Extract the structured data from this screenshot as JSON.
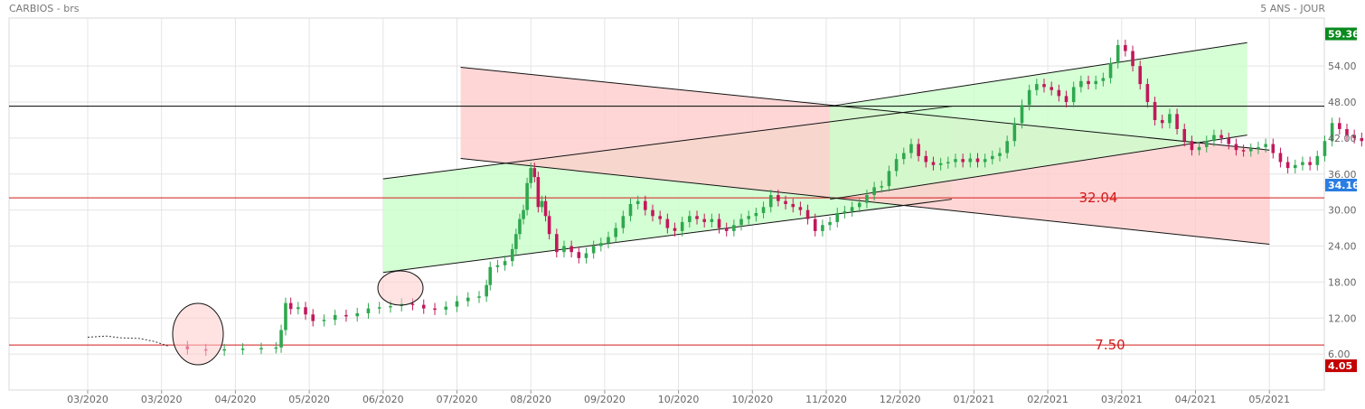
{
  "header": {
    "title": "CARBIOS - brs",
    "period": "5 ANS - JOUR"
  },
  "chart_data": {
    "type": "candlestick",
    "title": "CARBIOS - brs",
    "period": "5 ANS - JOUR",
    "ylim": [
      0,
      62
    ],
    "y_ticks": [
      "6.00",
      "12.00",
      "18.00",
      "24.00",
      "30.00",
      "36.00",
      "42.00",
      "48.00",
      "54.00"
    ],
    "x_ticks": [
      "03/2020",
      "03/2020",
      "04/2020",
      "05/2020",
      "06/2020",
      "07/2020",
      "08/2020",
      "09/2020",
      "10/2020",
      "10/2020",
      "11/2020",
      "12/2020",
      "01/2021",
      "02/2021",
      "03/2021",
      "04/2021",
      "05/2021"
    ],
    "grid": true,
    "badges": [
      {
        "label": "59.36",
        "value": 59.36,
        "color": "#0a8a1e"
      },
      {
        "label": "34.16",
        "value": 34.16,
        "color": "#2a7de1"
      },
      {
        "label": "4.05",
        "value": 4.05,
        "color": "#c40000"
      }
    ],
    "levels": [
      {
        "label": "32.04",
        "value": 32.04,
        "color": "#d21a1a"
      },
      {
        "label": "7.50",
        "value": 7.5,
        "color": "#d21a1a"
      },
      {
        "label": "",
        "value": 47.3,
        "color": "#000000"
      }
    ],
    "channels": [
      {
        "fill": "#ccffcc",
        "opacity": 0.85,
        "x0": 4,
        "x1": 11.7,
        "top": [
          35.2,
          47.3
        ],
        "bottom": [
          19.6,
          31.8
        ]
      },
      {
        "fill": "#ffcccc",
        "opacity": 0.8,
        "x0": 5.05,
        "x1": 16,
        "top": [
          53.8,
          40.0
        ],
        "bottom": [
          38.6,
          24.3
        ]
      },
      {
        "fill": "#ccffcc",
        "opacity": 0.8,
        "x0": 10.05,
        "x1": 15.7,
        "top": [
          47.3,
          57.9
        ],
        "bottom": [
          31.8,
          42.5
        ]
      }
    ],
    "price": [
      [
        0,
        8.8
      ],
      [
        0.25,
        9.0
      ],
      [
        0.45,
        8.7
      ],
      [
        0.7,
        8.6
      ],
      [
        0.9,
        8.1
      ],
      [
        1.1,
        7.3
      ],
      [
        1.35,
        6.8
      ],
      [
        1.6,
        6.6
      ],
      [
        1.85,
        6.8
      ],
      [
        2.1,
        6.9
      ],
      [
        2.35,
        7.0
      ],
      [
        2.55,
        7.1
      ],
      [
        2.62,
        10.0
      ],
      [
        2.68,
        14.5
      ],
      [
        2.75,
        13.5
      ],
      [
        2.85,
        13.8
      ],
      [
        2.95,
        12.6
      ],
      [
        3.05,
        11.5
      ],
      [
        3.2,
        11.7
      ],
      [
        3.35,
        12.5
      ],
      [
        3.5,
        12.3
      ],
      [
        3.65,
        12.8
      ],
      [
        3.8,
        13.6
      ],
      [
        3.95,
        13.8
      ],
      [
        4.1,
        14.0
      ],
      [
        4.25,
        14.4
      ],
      [
        4.4,
        14.2
      ],
      [
        4.55,
        13.6
      ],
      [
        4.7,
        13.4
      ],
      [
        4.85,
        13.9
      ],
      [
        5.0,
        14.8
      ],
      [
        5.15,
        15.4
      ],
      [
        5.3,
        15.6
      ],
      [
        5.4,
        17.5
      ],
      [
        5.45,
        20.5
      ],
      [
        5.55,
        20.8
      ],
      [
        5.65,
        21.5
      ],
      [
        5.75,
        23.5
      ],
      [
        5.8,
        26.0
      ],
      [
        5.85,
        28.5
      ],
      [
        5.9,
        30.0
      ],
      [
        5.95,
        34.5
      ],
      [
        6.0,
        37.0
      ],
      [
        6.05,
        35.5
      ],
      [
        6.1,
        30.5
      ],
      [
        6.15,
        31.5
      ],
      [
        6.2,
        29.0
      ],
      [
        6.25,
        26.0
      ],
      [
        6.35,
        23.0
      ],
      [
        6.45,
        24.0
      ],
      [
        6.55,
        23.0
      ],
      [
        6.65,
        22.0
      ],
      [
        6.75,
        22.8
      ],
      [
        6.85,
        24.0
      ],
      [
        6.95,
        24.5
      ],
      [
        7.05,
        25.5
      ],
      [
        7.15,
        27.0
      ],
      [
        7.25,
        29.0
      ],
      [
        7.35,
        31.0
      ],
      [
        7.45,
        31.5
      ],
      [
        7.55,
        30.0
      ],
      [
        7.65,
        29.0
      ],
      [
        7.75,
        28.5
      ],
      [
        7.85,
        27.0
      ],
      [
        7.95,
        26.5
      ],
      [
        8.05,
        28.0
      ],
      [
        8.15,
        29.0
      ],
      [
        8.25,
        28.5
      ],
      [
        8.35,
        28.0
      ],
      [
        8.45,
        28.5
      ],
      [
        8.55,
        27.0
      ],
      [
        8.65,
        26.5
      ],
      [
        8.75,
        27.5
      ],
      [
        8.85,
        28.5
      ],
      [
        8.95,
        29.0
      ],
      [
        9.05,
        29.5
      ],
      [
        9.15,
        30.5
      ],
      [
        9.25,
        32.5
      ],
      [
        9.35,
        31.5
      ],
      [
        9.45,
        31.0
      ],
      [
        9.55,
        30.5
      ],
      [
        9.65,
        30.0
      ],
      [
        9.75,
        28.5
      ],
      [
        9.85,
        26.5
      ],
      [
        9.95,
        27.5
      ],
      [
        10.05,
        28.0
      ],
      [
        10.15,
        29.5
      ],
      [
        10.25,
        29.8
      ],
      [
        10.35,
        30.5
      ],
      [
        10.45,
        31.2
      ],
      [
        10.55,
        32.5
      ],
      [
        10.65,
        33.8
      ],
      [
        10.75,
        34.0
      ],
      [
        10.85,
        36.5
      ],
      [
        10.95,
        38.5
      ],
      [
        11.05,
        39.5
      ],
      [
        11.15,
        41.0
      ],
      [
        11.25,
        39.0
      ],
      [
        11.35,
        38.0
      ],
      [
        11.45,
        37.5
      ],
      [
        11.55,
        37.8
      ],
      [
        11.65,
        38.0
      ],
      [
        11.75,
        38.5
      ],
      [
        11.85,
        38.0
      ],
      [
        11.95,
        38.6
      ],
      [
        12.05,
        38.0
      ],
      [
        12.15,
        38.5
      ],
      [
        12.25,
        39.0
      ],
      [
        12.35,
        39.5
      ],
      [
        12.45,
        41.5
      ],
      [
        12.55,
        44.5
      ],
      [
        12.65,
        47.5
      ],
      [
        12.75,
        50.0
      ],
      [
        12.85,
        51.0
      ],
      [
        12.95,
        50.5
      ],
      [
        13.05,
        50.0
      ],
      [
        13.15,
        49.0
      ],
      [
        13.25,
        48.0
      ],
      [
        13.35,
        50.5
      ],
      [
        13.45,
        51.5
      ],
      [
        13.55,
        51.0
      ],
      [
        13.65,
        51.5
      ],
      [
        13.75,
        52.0
      ],
      [
        13.85,
        54.5
      ],
      [
        13.95,
        57.5
      ],
      [
        14.05,
        56.5
      ],
      [
        14.15,
        54.0
      ],
      [
        14.25,
        51.0
      ],
      [
        14.35,
        48.0
      ],
      [
        14.45,
        45.0
      ],
      [
        14.55,
        44.5
      ],
      [
        14.65,
        46.0
      ],
      [
        14.75,
        43.5
      ],
      [
        14.85,
        41.5
      ],
      [
        14.95,
        40.0
      ],
      [
        15.05,
        40.5
      ],
      [
        15.15,
        41.5
      ],
      [
        15.25,
        42.5
      ],
      [
        15.35,
        42.0
      ],
      [
        15.45,
        41.0
      ],
      [
        15.55,
        40.0
      ],
      [
        15.65,
        39.8
      ],
      [
        15.75,
        40.2
      ],
      [
        15.85,
        40.5
      ],
      [
        15.95,
        41.0
      ],
      [
        16.05,
        39.5
      ],
      [
        16.15,
        38.0
      ],
      [
        16.25,
        37.0
      ],
      [
        16.35,
        37.5
      ],
      [
        16.45,
        38.0
      ],
      [
        16.55,
        37.5
      ],
      [
        16.65,
        39.0
      ],
      [
        16.75,
        41.5
      ],
      [
        16.85,
        44.5
      ],
      [
        16.95,
        43.5
      ],
      [
        17.05,
        42.5
      ],
      [
        17.15,
        42.0
      ],
      [
        17.25,
        41.5
      ],
      [
        17.35,
        40.5
      ],
      [
        17.45,
        39.0
      ],
      [
        17.55,
        37.5
      ],
      [
        17.65,
        36.0
      ],
      [
        17.75,
        34.2
      ]
    ]
  }
}
